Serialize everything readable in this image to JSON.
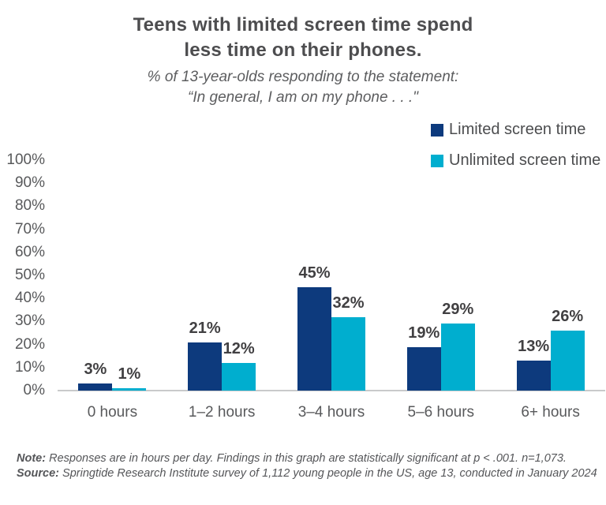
{
  "header": {
    "title_line1": "Teens with limited screen time spend",
    "title_line2": "less time on their phones.",
    "subtitle_line1": "% of 13-year-olds responding to the statement:",
    "subtitle_line2": "“In general, I am on my phone . . .\""
  },
  "chart_data": {
    "type": "bar",
    "categories": [
      "0 hours",
      "1–2 hours",
      "3–4 hours",
      "5–6 hours",
      "6+ hours"
    ],
    "series": [
      {
        "name": "Limited screen time",
        "color": "#0d3a7d",
        "values": [
          3,
          21,
          45,
          19,
          13
        ]
      },
      {
        "name": "Unlimited screen time",
        "color": "#00aecf",
        "values": [
          1,
          12,
          32,
          29,
          26
        ]
      }
    ],
    "value_labels": [
      [
        "3%",
        "21%",
        "45%",
        "19%",
        "13%"
      ],
      [
        "1%",
        "12%",
        "32%",
        "29%",
        "26%"
      ]
    ],
    "xlabel": "",
    "ylabel": "",
    "ylim": [
      0,
      100
    ],
    "y_ticks": [
      "0%",
      "10%",
      "20%",
      "30%",
      "40%",
      "50%",
      "60%",
      "70%",
      "80%",
      "90%",
      "100%"
    ],
    "grid": false,
    "legend_position": "top-right"
  },
  "footer": {
    "note_label": "Note:",
    "note_text": " Responses are in hours per day. Findings in this graph are statistically significant at p < .001. n=1,073.",
    "source_label": "Source:",
    "source_text": " Springtide Research Institute survey of 1,112 young people in the US, age 13, conducted in January 2024"
  },
  "colors": {
    "limited": "#0d3a7d",
    "unlimited": "#00aecf",
    "title_text": "#4d4d4f",
    "axis_text": "#58595b",
    "data_label_text": "#414042",
    "baseline": "#c9cacb",
    "background": "#ffffff"
  }
}
